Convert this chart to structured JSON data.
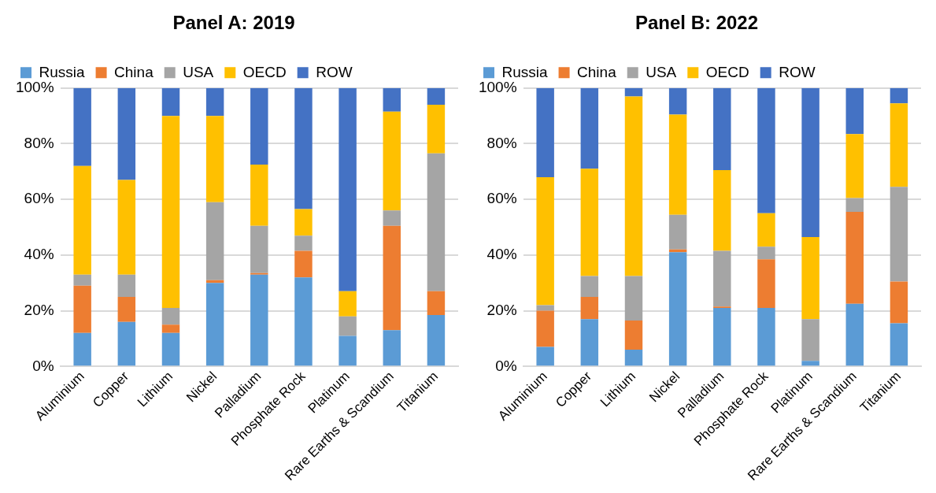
{
  "chart_data": [
    {
      "type": "bar",
      "title": "Panel A: 2019",
      "stacked": true,
      "categories": [
        "Aluminium",
        "Copper",
        "Lithium",
        "Nickel",
        "Palladium",
        "Phosphate Rock",
        "Platinum",
        "Rare Earths & Scandium",
        "Titanium"
      ],
      "ylim": [
        0,
        100
      ],
      "yticks": [
        {
          "value": 0,
          "label": "0%"
        },
        {
          "value": 20,
          "label": "20%"
        },
        {
          "value": 40,
          "label": "40%"
        },
        {
          "value": 60,
          "label": "60%"
        },
        {
          "value": 80,
          "label": "80%"
        },
        {
          "value": 100,
          "label": "100%"
        }
      ],
      "grid": "y",
      "legend": "top",
      "series": [
        {
          "name": "Russia",
          "color": "#5b9bd5",
          "values": [
            12,
            16,
            12,
            30,
            33,
            32,
            11,
            13,
            18.5
          ]
        },
        {
          "name": "China",
          "color": "#ed7d31",
          "values": [
            17,
            9,
            3,
            1,
            0.5,
            9.5,
            0,
            37.5,
            8.5
          ]
        },
        {
          "name": "USA",
          "color": "#a5a5a5",
          "values": [
            4,
            8,
            6,
            28,
            17,
            5.5,
            7,
            5.5,
            49.5
          ]
        },
        {
          "name": "OECD",
          "color": "#ffc000",
          "values": [
            39,
            34,
            69,
            31,
            22,
            9.5,
            9,
            35.5,
            17.5
          ]
        },
        {
          "name": "ROW",
          "color": "#4472c4",
          "values": [
            28,
            33,
            10,
            10,
            27.5,
            43.5,
            73,
            8.5,
            6
          ]
        }
      ]
    },
    {
      "type": "bar",
      "title": "Panel B: 2022",
      "stacked": true,
      "categories": [
        "Aluminium",
        "Copper",
        "Lithium",
        "Nickel",
        "Palladium",
        "Phosphate Rock",
        "Platinum",
        "Rare Earths & Scandium",
        "Titanium"
      ],
      "ylim": [
        0,
        100
      ],
      "yticks": [
        {
          "value": 0,
          "label": "0%"
        },
        {
          "value": 20,
          "label": "20%"
        },
        {
          "value": 40,
          "label": "40%"
        },
        {
          "value": 60,
          "label": "60%"
        },
        {
          "value": 80,
          "label": "80%"
        },
        {
          "value": 100,
          "label": "100%"
        }
      ],
      "grid": "y",
      "legend": "top",
      "series": [
        {
          "name": "Russia",
          "color": "#5b9bd5",
          "values": [
            7,
            17,
            6,
            41,
            21,
            21,
            2,
            22.5,
            15.5
          ]
        },
        {
          "name": "China",
          "color": "#ed7d31",
          "values": [
            13,
            8,
            10.5,
            1,
            0.5,
            17.5,
            0,
            33,
            15
          ]
        },
        {
          "name": "USA",
          "color": "#a5a5a5",
          "values": [
            2,
            7.5,
            16,
            12.5,
            20,
            4.5,
            15,
            5,
            34
          ]
        },
        {
          "name": "OECD",
          "color": "#ffc000",
          "values": [
            46,
            38.5,
            64.5,
            36,
            29,
            12,
            29.5,
            23,
            30
          ]
        },
        {
          "name": "ROW",
          "color": "#4472c4",
          "values": [
            32,
            29,
            3,
            9.5,
            29.5,
            45,
            53.5,
            16.5,
            5.5
          ]
        }
      ]
    }
  ]
}
